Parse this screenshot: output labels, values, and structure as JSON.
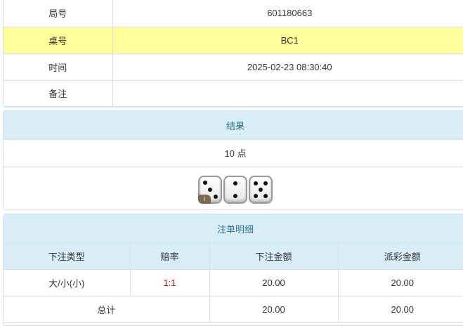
{
  "info": {
    "rows": [
      {
        "label": "局号",
        "value": "601180663"
      },
      {
        "label": "桌号",
        "value": "BC1"
      },
      {
        "label": "时间",
        "value": "2025-02-23 08:30:40"
      },
      {
        "label": "备注",
        "value": ""
      }
    ]
  },
  "result": {
    "title": "结果",
    "points": "10 点",
    "dice": [
      3,
      2,
      5
    ],
    "info_badge": "i"
  },
  "bets": {
    "title": "注单明细",
    "headers": [
      "下注类型",
      "赔率",
      "下注金额",
      "派彩金额"
    ],
    "rows": [
      {
        "type": "大/小(小)",
        "odds": "1:1",
        "amount": "20.00",
        "payout": "20.00"
      }
    ],
    "total": {
      "label": "总计",
      "amount": "20.00",
      "payout": "20.00"
    }
  },
  "colors": {
    "highlight": "#ffff99",
    "header_bg": "#d9edf7",
    "odds": "#ee0000"
  }
}
